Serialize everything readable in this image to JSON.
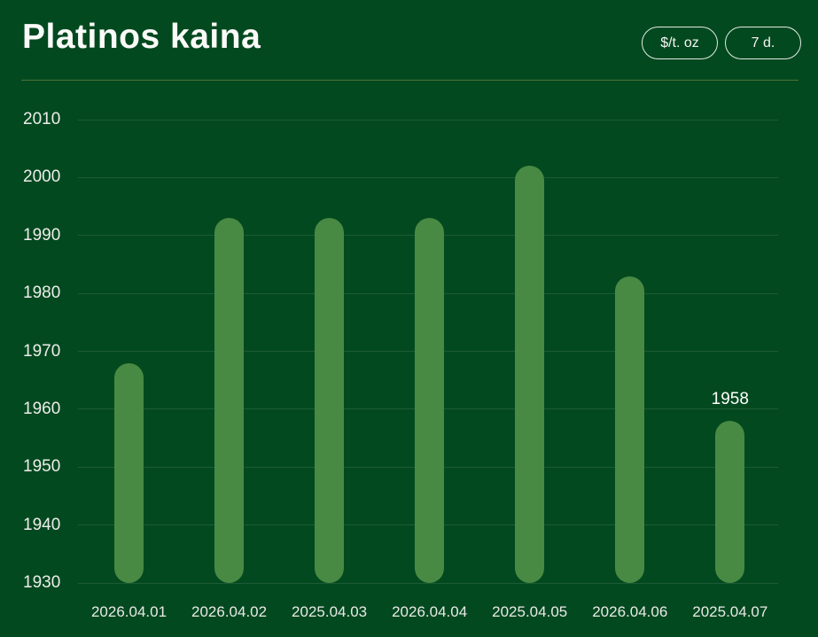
{
  "header": {
    "title": "Platinos kaina",
    "unit_button_label": "$/t. oz",
    "range_button_label": "7 d."
  },
  "colors": {
    "background": "#03491F",
    "bar": "#488A43",
    "gridline": "rgba(255,255,255,0.10)",
    "separator": "#5A7A3C",
    "title_text": "#FAFAF8",
    "axis_text": "#EDEDEB"
  },
  "chart_data": {
    "type": "bar",
    "title": "Platinos kaina",
    "unit": "$/t. oz",
    "range": "7 d.",
    "categories": [
      "2026.04.01",
      "2026.04.02",
      "2025.04.03",
      "2026.04.04",
      "2025.04.05",
      "2026.04.06",
      "2025.04.07"
    ],
    "values": [
      1968,
      1993,
      1993,
      1993,
      2002,
      1983,
      1958
    ],
    "yticks": [
      1930,
      1940,
      1950,
      1960,
      1970,
      1980,
      1990,
      2000,
      2010
    ],
    "ylim": [
      1930,
      2010
    ],
    "grid": true,
    "legend": false,
    "annotations": [
      {
        "index": 6,
        "label": "1958"
      }
    ]
  }
}
